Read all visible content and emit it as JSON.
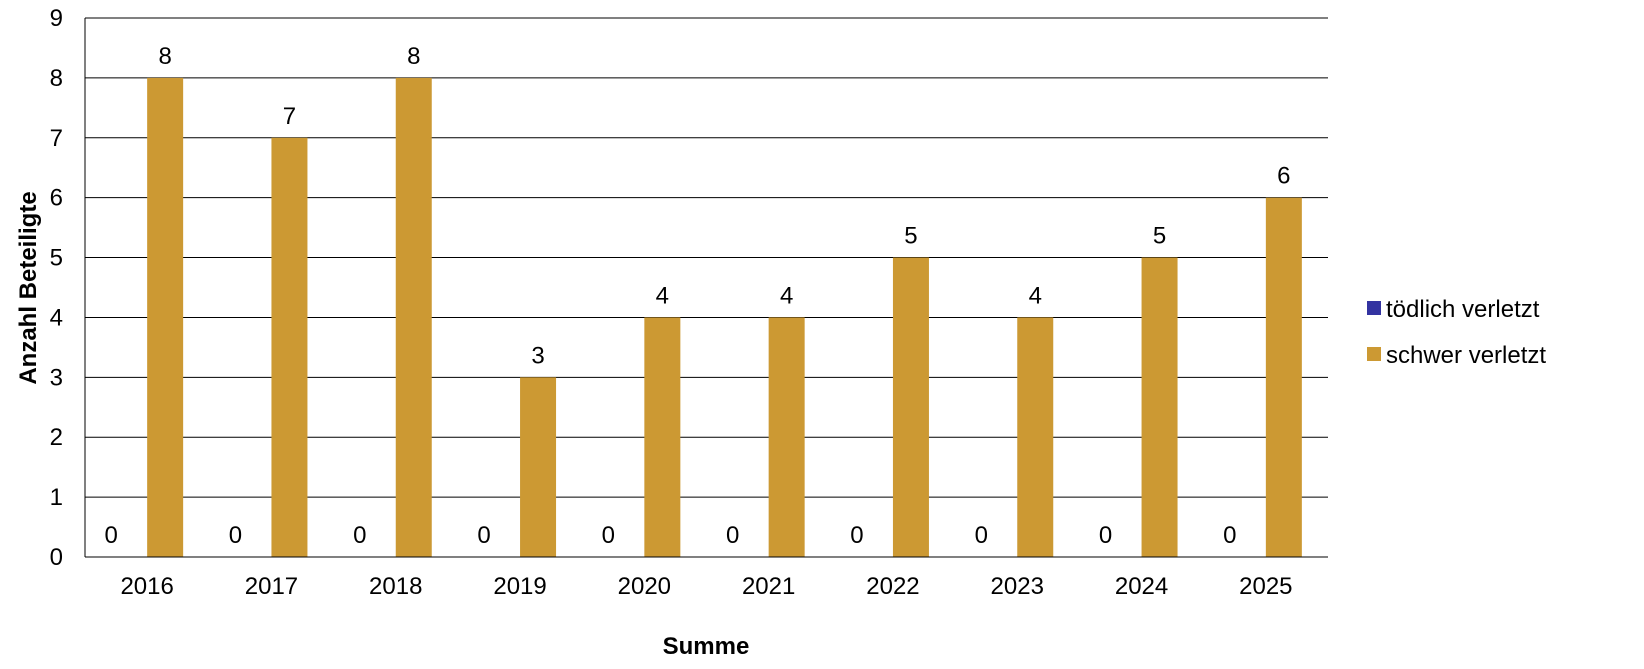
{
  "chart_data": {
    "type": "bar",
    "title": "",
    "xlabel": "Summe",
    "ylabel": "Anzahl Beteiligte",
    "ylim": [
      0,
      9
    ],
    "yticks": [
      0,
      1,
      2,
      3,
      4,
      5,
      6,
      7,
      8,
      9
    ],
    "grid": true,
    "legend_position": "right",
    "categories": [
      "2016",
      "2017",
      "2018",
      "2019",
      "2020",
      "2021",
      "2022",
      "2023",
      "2024",
      "2025"
    ],
    "series": [
      {
        "name": "tödlich verletzt",
        "color": "#3333a1",
        "values": [
          0,
          0,
          0,
          0,
          0,
          0,
          0,
          0,
          0,
          0
        ]
      },
      {
        "name": "schwer verletzt",
        "color": "#cc9933",
        "values": [
          8,
          7,
          8,
          3,
          4,
          4,
          5,
          4,
          5,
          6
        ]
      }
    ]
  }
}
